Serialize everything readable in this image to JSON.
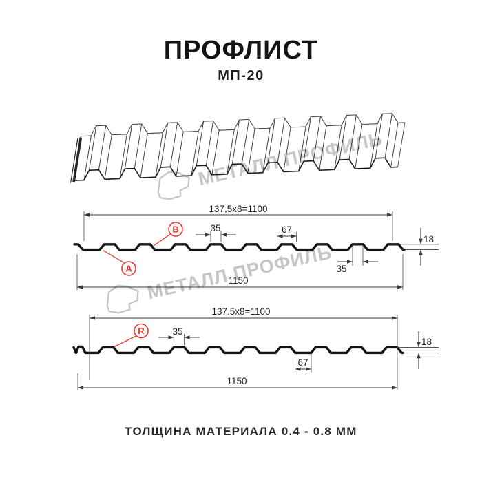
{
  "header": {
    "title": "ПРОФЛИСТ",
    "subtitle": "МП-20"
  },
  "watermark": {
    "brand": "МЕТАЛЛ ПРОФИЛЬ",
    "logo_icon": "metal-profil-logo",
    "color": "#c6c6c6"
  },
  "colors": {
    "accent_red": "#e8352c",
    "line_dark": "#141414",
    "dim_line": "#3a3a3a"
  },
  "front_view": {
    "pitch_dim": "137,5x8=1100",
    "rib_top_dim": "35",
    "rib_base_dim": "67",
    "rib_top_dim_2": "35",
    "height_dim": "18",
    "width_dim": "1150",
    "label_a": "A",
    "label_b": "B"
  },
  "back_view": {
    "pitch_dim": "137.5x8=1100",
    "rib_top_dim": "35",
    "valley_dim": "67",
    "height_dim": "18",
    "width_dim": "1150",
    "label_r": "R"
  },
  "footer": {
    "material_thickness": "ТОЛЩИНА МАТЕРИАЛА 0.4 - 0.8 ММ"
  }
}
